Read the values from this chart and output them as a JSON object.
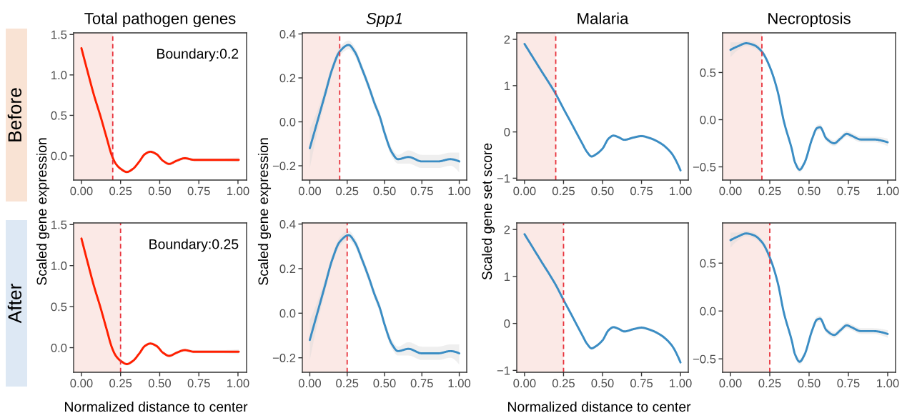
{
  "chart_data": [
    {
      "type": "line",
      "title": "Total pathogen genes",
      "subtitle": "Before",
      "ylabel": "Scaled gene expression",
      "annotations": [
        "Boundary:0.2"
      ],
      "xlim": [
        -0.05,
        1.055
      ],
      "ylim": [
        -0.3,
        1.52
      ],
      "xticks": [
        {
          "value": 0,
          "label": "0.00"
        },
        {
          "value": 0.25,
          "label": "0.25"
        },
        {
          "value": 0.5,
          "label": "0.50"
        },
        {
          "value": 0.75,
          "label": "0.75"
        },
        {
          "value": 1,
          "label": "1.00"
        }
      ],
      "yticks": [
        {
          "value": 0,
          "label": "0.0"
        },
        {
          "value": 0.5,
          "label": "0.5"
        },
        {
          "value": 1,
          "label": "1.0"
        },
        {
          "value": 1.5,
          "label": "1.5"
        }
      ],
      "bands": [
        {
          "axis": "x",
          "from": -0.05,
          "to": 0.2,
          "color": "#fbe9e6"
        }
      ],
      "ref_lines": [
        {
          "axis": "x",
          "value": 0.2,
          "color": "#e8323c",
          "line_style": "dashed"
        }
      ],
      "series": [
        {
          "color": "#ff1f00",
          "x": [
            0,
            0.045,
            0.08,
            0.12,
            0.16,
            0.195,
            0.22,
            0.25,
            0.29,
            0.33,
            0.37,
            0.405,
            0.44,
            0.48,
            0.52,
            0.56,
            0.61,
            0.66,
            0.72,
            0.8,
            0.9,
            1.005
          ],
          "values": [
            1.33,
            1.0,
            0.75,
            0.5,
            0.23,
            0.0,
            -0.1,
            -0.16,
            -0.2,
            -0.16,
            -0.07,
            0.02,
            0.05,
            0.02,
            -0.06,
            -0.1,
            -0.06,
            -0.03,
            -0.05,
            -0.05,
            -0.05,
            -0.05
          ],
          "lower": [
            1.28,
            0.97,
            0.73,
            0.48,
            0.21,
            -0.02,
            -0.12,
            -0.18,
            -0.22,
            -0.18,
            -0.09,
            0.0,
            0.03,
            0.0,
            -0.08,
            -0.12,
            -0.08,
            -0.05,
            -0.07,
            -0.07,
            -0.07,
            -0.08
          ],
          "upper": [
            1.38,
            1.03,
            0.77,
            0.52,
            0.25,
            0.02,
            -0.08,
            -0.14,
            -0.18,
            -0.14,
            -0.05,
            0.04,
            0.07,
            0.04,
            -0.04,
            -0.08,
            -0.04,
            -0.01,
            -0.03,
            -0.03,
            -0.03,
            -0.02
          ]
        }
      ]
    },
    {
      "type": "line",
      "title": "Spp1",
      "ylabel": "Scaled gene expression",
      "xlim": [
        -0.05,
        1.05
      ],
      "ylim": [
        -0.265,
        0.405
      ],
      "xticks": [
        {
          "value": 0,
          "label": "0.00"
        },
        {
          "value": 0.25,
          "label": "0.25"
        },
        {
          "value": 0.5,
          "label": "0.50"
        },
        {
          "value": 0.75,
          "label": "0.75"
        },
        {
          "value": 1,
          "label": "1.00"
        }
      ],
      "yticks": [
        {
          "value": -0.2,
          "label": "−0.2"
        },
        {
          "value": 0,
          "label": "0.0"
        },
        {
          "value": 0.2,
          "label": "0.2"
        },
        {
          "value": 0.4,
          "label": "0.4"
        }
      ],
      "bands": [
        {
          "axis": "x",
          "from": -0.05,
          "to": 0.2,
          "color": "#fbe9e6"
        }
      ],
      "ref_lines": [
        {
          "axis": "x",
          "value": 0.2,
          "color": "#e8323c",
          "line_style": "dashed"
        }
      ],
      "series": [
        {
          "color": "#3b8dc4",
          "x": [
            0,
            0.05,
            0.1,
            0.15,
            0.2,
            0.26,
            0.3,
            0.35,
            0.4,
            0.43,
            0.47,
            0.5,
            0.55,
            0.59,
            0.66,
            0.75,
            0.86,
            0.94,
            1.0
          ],
          "values": [
            -0.12,
            0.0,
            0.12,
            0.24,
            0.32,
            0.35,
            0.32,
            0.24,
            0.15,
            0.09,
            0.02,
            -0.05,
            -0.14,
            -0.17,
            -0.16,
            -0.18,
            -0.18,
            -0.17,
            -0.18
          ],
          "lower": [
            -0.21,
            -0.05,
            0.09,
            0.22,
            0.3,
            0.33,
            0.3,
            0.22,
            0.13,
            0.07,
            0.0,
            -0.07,
            -0.16,
            -0.19,
            -0.19,
            -0.21,
            -0.21,
            -0.2,
            -0.23
          ],
          "upper": [
            -0.03,
            0.05,
            0.15,
            0.26,
            0.34,
            0.37,
            0.34,
            0.26,
            0.17,
            0.11,
            0.04,
            -0.03,
            -0.12,
            -0.15,
            -0.13,
            -0.15,
            -0.15,
            -0.14,
            -0.14
          ]
        }
      ]
    },
    {
      "type": "line",
      "title": "Malaria",
      "ylabel": "Scaled gene set score",
      "xlim": [
        -0.05,
        1.05
      ],
      "ylim": [
        -1.04,
        2.14
      ],
      "xticks": [
        {
          "value": 0,
          "label": "0.00"
        },
        {
          "value": 0.25,
          "label": "0.25"
        },
        {
          "value": 0.5,
          "label": "0.50"
        },
        {
          "value": 0.75,
          "label": "0.75"
        },
        {
          "value": 1,
          "label": "1.00"
        }
      ],
      "yticks": [
        {
          "value": -1,
          "label": "−1"
        },
        0,
        1,
        2
      ],
      "bands": [
        {
          "axis": "x",
          "from": -0.05,
          "to": 0.2,
          "color": "#fbe9e6"
        }
      ],
      "ref_lines": [
        {
          "axis": "x",
          "value": 0.2,
          "color": "#e8323c",
          "line_style": "dashed"
        }
      ],
      "series": [
        {
          "color": "#3b8dc4",
          "x": [
            0,
            0.1,
            0.2,
            0.25,
            0.3,
            0.33,
            0.37,
            0.4,
            0.43,
            0.46,
            0.5,
            0.54,
            0.57,
            0.6,
            0.64,
            0.7,
            0.75,
            0.8,
            0.87,
            0.94,
            1.0
          ],
          "values": [
            1.9,
            1.36,
            0.82,
            0.5,
            0.19,
            0.0,
            -0.25,
            -0.43,
            -0.53,
            -0.48,
            -0.36,
            -0.14,
            -0.08,
            -0.11,
            -0.17,
            -0.12,
            -0.09,
            -0.13,
            -0.24,
            -0.45,
            -0.83
          ],
          "lower": [
            1.86,
            1.33,
            0.79,
            0.47,
            0.16,
            -0.03,
            -0.28,
            -0.46,
            -0.56,
            -0.51,
            -0.39,
            -0.17,
            -0.11,
            -0.14,
            -0.2,
            -0.15,
            -0.12,
            -0.16,
            -0.27,
            -0.48,
            -0.87
          ],
          "upper": [
            1.94,
            1.39,
            0.85,
            0.53,
            0.22,
            0.03,
            -0.22,
            -0.4,
            -0.5,
            -0.45,
            -0.33,
            -0.11,
            -0.05,
            -0.08,
            -0.14,
            -0.09,
            -0.06,
            -0.1,
            -0.21,
            -0.42,
            -0.79
          ]
        }
      ]
    },
    {
      "type": "line",
      "title": "Necroptosis",
      "xlim": [
        -0.05,
        1.05
      ],
      "ylim": [
        -0.64,
        0.92
      ],
      "xticks": [
        {
          "value": 0,
          "label": "0.00"
        },
        {
          "value": 0.25,
          "label": "0.25"
        },
        {
          "value": 0.5,
          "label": "0.50"
        },
        {
          "value": 0.75,
          "label": "0.75"
        },
        {
          "value": 1,
          "label": "1.00"
        }
      ],
      "yticks": [
        {
          "value": -0.5,
          "label": "−0.5"
        },
        {
          "value": 0,
          "label": "0.0"
        },
        {
          "value": 0.5,
          "label": "0.5"
        }
      ],
      "bands": [
        {
          "axis": "x",
          "from": -0.05,
          "to": 0.2,
          "color": "#fbe9e6"
        }
      ],
      "ref_lines": [
        {
          "axis": "x",
          "value": 0.2,
          "color": "#e8323c",
          "line_style": "dashed"
        }
      ],
      "series": [
        {
          "color": "#3b8dc4",
          "x": [
            0,
            0.05,
            0.1,
            0.15,
            0.2,
            0.25,
            0.3,
            0.34,
            0.39,
            0.41,
            0.44,
            0.47,
            0.52,
            0.55,
            0.57,
            0.61,
            0.66,
            0.7,
            0.74,
            0.77,
            0.83,
            0.91,
            1.0
          ],
          "values": [
            0.74,
            0.78,
            0.81,
            0.79,
            0.72,
            0.56,
            0.3,
            -0.02,
            -0.31,
            -0.45,
            -0.53,
            -0.46,
            -0.2,
            -0.09,
            -0.08,
            -0.2,
            -0.25,
            -0.2,
            -0.15,
            -0.17,
            -0.21,
            -0.21,
            -0.24
          ],
          "lower": [
            0.66,
            0.74,
            0.78,
            0.76,
            0.69,
            0.53,
            0.27,
            -0.05,
            -0.34,
            -0.48,
            -0.56,
            -0.49,
            -0.23,
            -0.12,
            -0.11,
            -0.23,
            -0.28,
            -0.23,
            -0.18,
            -0.2,
            -0.24,
            -0.24,
            -0.28
          ],
          "upper": [
            0.82,
            0.82,
            0.84,
            0.82,
            0.75,
            0.59,
            0.33,
            0.01,
            -0.28,
            -0.42,
            -0.5,
            -0.43,
            -0.17,
            -0.06,
            -0.05,
            -0.17,
            -0.22,
            -0.17,
            -0.12,
            -0.14,
            -0.18,
            -0.18,
            -0.2
          ]
        }
      ]
    },
    {
      "type": "line",
      "subtitle": "After",
      "xlabel": "Normalized distance to center",
      "annotations": [
        "Boundary:0.25"
      ],
      "xlim": [
        -0.05,
        1.055
      ],
      "ylim": [
        -0.3,
        1.52
      ],
      "xticks": [
        {
          "value": 0,
          "label": "0.00"
        },
        {
          "value": 0.25,
          "label": "0.25"
        },
        {
          "value": 0.5,
          "label": "0.50"
        },
        {
          "value": 0.75,
          "label": "0.75"
        },
        {
          "value": 1,
          "label": "1.00"
        }
      ],
      "yticks": [
        {
          "value": 0,
          "label": "0.0"
        },
        {
          "value": 0.5,
          "label": "0.5"
        },
        {
          "value": 1,
          "label": "1.0"
        },
        {
          "value": 1.5,
          "label": "1.5"
        }
      ],
      "bands": [
        {
          "axis": "x",
          "from": -0.05,
          "to": 0.25,
          "color": "#fbe9e6"
        }
      ],
      "ref_lines": [
        {
          "axis": "x",
          "value": 0.25,
          "color": "#e8323c",
          "line_style": "dashed"
        }
      ],
      "series": [
        {
          "color": "#ff1f00",
          "x": [
            0,
            0.045,
            0.08,
            0.12,
            0.16,
            0.195,
            0.22,
            0.25,
            0.29,
            0.33,
            0.37,
            0.405,
            0.44,
            0.48,
            0.52,
            0.56,
            0.61,
            0.66,
            0.72,
            0.8,
            0.9,
            1.005
          ],
          "values": [
            1.33,
            1.0,
            0.75,
            0.5,
            0.23,
            0.0,
            -0.1,
            -0.16,
            -0.2,
            -0.16,
            -0.07,
            0.02,
            0.05,
            0.02,
            -0.06,
            -0.1,
            -0.06,
            -0.03,
            -0.05,
            -0.05,
            -0.05,
            -0.05
          ],
          "lower": [
            1.28,
            0.97,
            0.73,
            0.48,
            0.21,
            -0.02,
            -0.12,
            -0.18,
            -0.22,
            -0.18,
            -0.09,
            0.0,
            0.03,
            0.0,
            -0.08,
            -0.12,
            -0.08,
            -0.05,
            -0.07,
            -0.07,
            -0.07,
            -0.08
          ],
          "upper": [
            1.38,
            1.03,
            0.77,
            0.52,
            0.25,
            0.02,
            -0.08,
            -0.14,
            -0.18,
            -0.14,
            -0.05,
            0.04,
            0.07,
            0.04,
            -0.04,
            -0.08,
            -0.04,
            -0.01,
            -0.03,
            -0.03,
            -0.03,
            -0.02
          ]
        }
      ]
    },
    {
      "type": "line",
      "xlim": [
        -0.05,
        1.05
      ],
      "ylim": [
        -0.265,
        0.405
      ],
      "xticks": [
        {
          "value": 0,
          "label": "0.00"
        },
        {
          "value": 0.25,
          "label": "0.25"
        },
        {
          "value": 0.5,
          "label": "0.50"
        },
        {
          "value": 0.75,
          "label": "0.75"
        },
        {
          "value": 1,
          "label": "1.00"
        }
      ],
      "yticks": [
        {
          "value": -0.2,
          "label": "−0.2"
        },
        {
          "value": 0,
          "label": "0.0"
        },
        {
          "value": 0.2,
          "label": "0.2"
        },
        {
          "value": 0.4,
          "label": "0.4"
        }
      ],
      "bands": [
        {
          "axis": "x",
          "from": -0.05,
          "to": 0.25,
          "color": "#fbe9e6"
        }
      ],
      "ref_lines": [
        {
          "axis": "x",
          "value": 0.25,
          "color": "#e8323c",
          "line_style": "dashed"
        }
      ],
      "series": [
        {
          "color": "#3b8dc4",
          "x": [
            0,
            0.05,
            0.1,
            0.15,
            0.2,
            0.26,
            0.3,
            0.35,
            0.4,
            0.43,
            0.47,
            0.5,
            0.55,
            0.59,
            0.66,
            0.75,
            0.86,
            0.94,
            1.0
          ],
          "values": [
            -0.12,
            0.0,
            0.12,
            0.24,
            0.32,
            0.35,
            0.32,
            0.24,
            0.15,
            0.09,
            0.02,
            -0.05,
            -0.14,
            -0.17,
            -0.16,
            -0.18,
            -0.18,
            -0.17,
            -0.18
          ],
          "lower": [
            -0.21,
            -0.05,
            0.09,
            0.22,
            0.3,
            0.33,
            0.3,
            0.22,
            0.13,
            0.07,
            0.0,
            -0.07,
            -0.16,
            -0.19,
            -0.19,
            -0.21,
            -0.21,
            -0.2,
            -0.23
          ],
          "upper": [
            -0.03,
            0.05,
            0.15,
            0.26,
            0.34,
            0.37,
            0.34,
            0.26,
            0.17,
            0.11,
            0.04,
            -0.03,
            -0.12,
            -0.15,
            -0.13,
            -0.15,
            -0.15,
            -0.14,
            -0.14
          ]
        }
      ]
    },
    {
      "type": "line",
      "xlabel": "Normalized distance to center",
      "xlim": [
        -0.05,
        1.05
      ],
      "ylim": [
        -1.04,
        2.14
      ],
      "xticks": [
        {
          "value": 0,
          "label": "0.00"
        },
        {
          "value": 0.25,
          "label": "0.25"
        },
        {
          "value": 0.5,
          "label": "0.50"
        },
        {
          "value": 0.75,
          "label": "0.75"
        },
        {
          "value": 1,
          "label": "1.00"
        }
      ],
      "yticks": [
        {
          "value": -1,
          "label": "−1"
        },
        0,
        1,
        2
      ],
      "bands": [
        {
          "axis": "x",
          "from": -0.05,
          "to": 0.25,
          "color": "#fbe9e6"
        }
      ],
      "ref_lines": [
        {
          "axis": "x",
          "value": 0.25,
          "color": "#e8323c",
          "line_style": "dashed"
        }
      ],
      "series": [
        {
          "color": "#3b8dc4",
          "x": [
            0,
            0.1,
            0.2,
            0.25,
            0.3,
            0.33,
            0.37,
            0.4,
            0.43,
            0.46,
            0.5,
            0.54,
            0.57,
            0.6,
            0.64,
            0.7,
            0.75,
            0.8,
            0.87,
            0.94,
            1.0
          ],
          "values": [
            1.9,
            1.36,
            0.82,
            0.5,
            0.19,
            0.0,
            -0.25,
            -0.43,
            -0.53,
            -0.48,
            -0.36,
            -0.14,
            -0.08,
            -0.11,
            -0.17,
            -0.12,
            -0.09,
            -0.13,
            -0.24,
            -0.45,
            -0.83
          ],
          "lower": [
            1.86,
            1.33,
            0.79,
            0.47,
            0.16,
            -0.03,
            -0.28,
            -0.46,
            -0.56,
            -0.51,
            -0.39,
            -0.17,
            -0.11,
            -0.14,
            -0.2,
            -0.15,
            -0.12,
            -0.16,
            -0.27,
            -0.48,
            -0.87
          ],
          "upper": [
            1.94,
            1.39,
            0.85,
            0.53,
            0.22,
            0.03,
            -0.22,
            -0.4,
            -0.5,
            -0.45,
            -0.33,
            -0.11,
            -0.05,
            -0.08,
            -0.14,
            -0.09,
            -0.06,
            -0.1,
            -0.21,
            -0.42,
            -0.79
          ]
        }
      ]
    },
    {
      "type": "line",
      "xlim": [
        -0.05,
        1.05
      ],
      "ylim": [
        -0.64,
        0.92
      ],
      "xticks": [
        {
          "value": 0,
          "label": "0.00"
        },
        {
          "value": 0.25,
          "label": "0.25"
        },
        {
          "value": 0.5,
          "label": "0.50"
        },
        {
          "value": 0.75,
          "label": "0.75"
        },
        {
          "value": 1,
          "label": "1.00"
        }
      ],
      "yticks": [
        {
          "value": -0.5,
          "label": "−0.5"
        },
        {
          "value": 0,
          "label": "0.0"
        },
        {
          "value": 0.5,
          "label": "0.5"
        }
      ],
      "bands": [
        {
          "axis": "x",
          "from": -0.05,
          "to": 0.25,
          "color": "#fbe9e6"
        }
      ],
      "ref_lines": [
        {
          "axis": "x",
          "value": 0.25,
          "color": "#e8323c",
          "line_style": "dashed"
        }
      ],
      "series": [
        {
          "color": "#3b8dc4",
          "x": [
            0,
            0.05,
            0.1,
            0.15,
            0.2,
            0.25,
            0.3,
            0.34,
            0.39,
            0.41,
            0.44,
            0.47,
            0.52,
            0.55,
            0.57,
            0.61,
            0.66,
            0.7,
            0.74,
            0.77,
            0.83,
            0.91,
            1.0
          ],
          "values": [
            0.74,
            0.78,
            0.81,
            0.79,
            0.72,
            0.56,
            0.3,
            -0.02,
            -0.31,
            -0.45,
            -0.53,
            -0.46,
            -0.2,
            -0.09,
            -0.08,
            -0.2,
            -0.25,
            -0.2,
            -0.15,
            -0.17,
            -0.21,
            -0.21,
            -0.24
          ],
          "lower": [
            0.66,
            0.74,
            0.78,
            0.76,
            0.69,
            0.53,
            0.27,
            -0.05,
            -0.34,
            -0.48,
            -0.56,
            -0.49,
            -0.23,
            -0.12,
            -0.11,
            -0.23,
            -0.28,
            -0.23,
            -0.18,
            -0.2,
            -0.24,
            -0.24,
            -0.28
          ],
          "upper": [
            0.82,
            0.82,
            0.84,
            0.82,
            0.75,
            0.59,
            0.33,
            0.01,
            -0.28,
            -0.42,
            -0.5,
            -0.43,
            -0.17,
            -0.06,
            -0.05,
            -0.17,
            -0.22,
            -0.17,
            -0.12,
            -0.14,
            -0.18,
            -0.18,
            -0.2
          ]
        }
      ]
    }
  ]
}
